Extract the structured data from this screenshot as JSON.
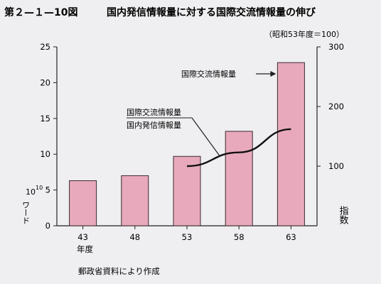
{
  "figure_label": "第２—１—10図",
  "title": "国内発信情報量に対する国際交流情報量の伸び",
  "index_note": "（昭和53年度＝100）",
  "source": "郵政省資料により作成",
  "chart_data": {
    "type": "bar",
    "categories": [
      "43",
      "48",
      "53",
      "58",
      "63"
    ],
    "xlabel": "年度",
    "left_axis": {
      "label_power": "10",
      "label_exponent": "10",
      "label_word": "ワード",
      "ylim": [
        0,
        25
      ],
      "ticks": [
        0,
        5,
        10,
        15,
        20,
        25
      ]
    },
    "right_axis": {
      "label": "指数",
      "ylim": [
        0,
        300
      ],
      "ticks": [
        100,
        200,
        300
      ]
    },
    "series": [
      {
        "name": "国際交流情報量",
        "type": "bar",
        "axis": "left",
        "values": [
          6.3,
          7.0,
          9.7,
          13.2,
          22.8
        ]
      },
      {
        "name_line1": "国際交流情報量",
        "name_line2": "国内発信情報量",
        "type": "line",
        "axis": "right",
        "x": [
          "53",
          "58",
          "63"
        ],
        "values": [
          100,
          123,
          162
        ]
      }
    ],
    "colors": {
      "bar": "#e8a9bc",
      "bar_edge": "#3a2a2e",
      "axis": "#222222"
    }
  }
}
